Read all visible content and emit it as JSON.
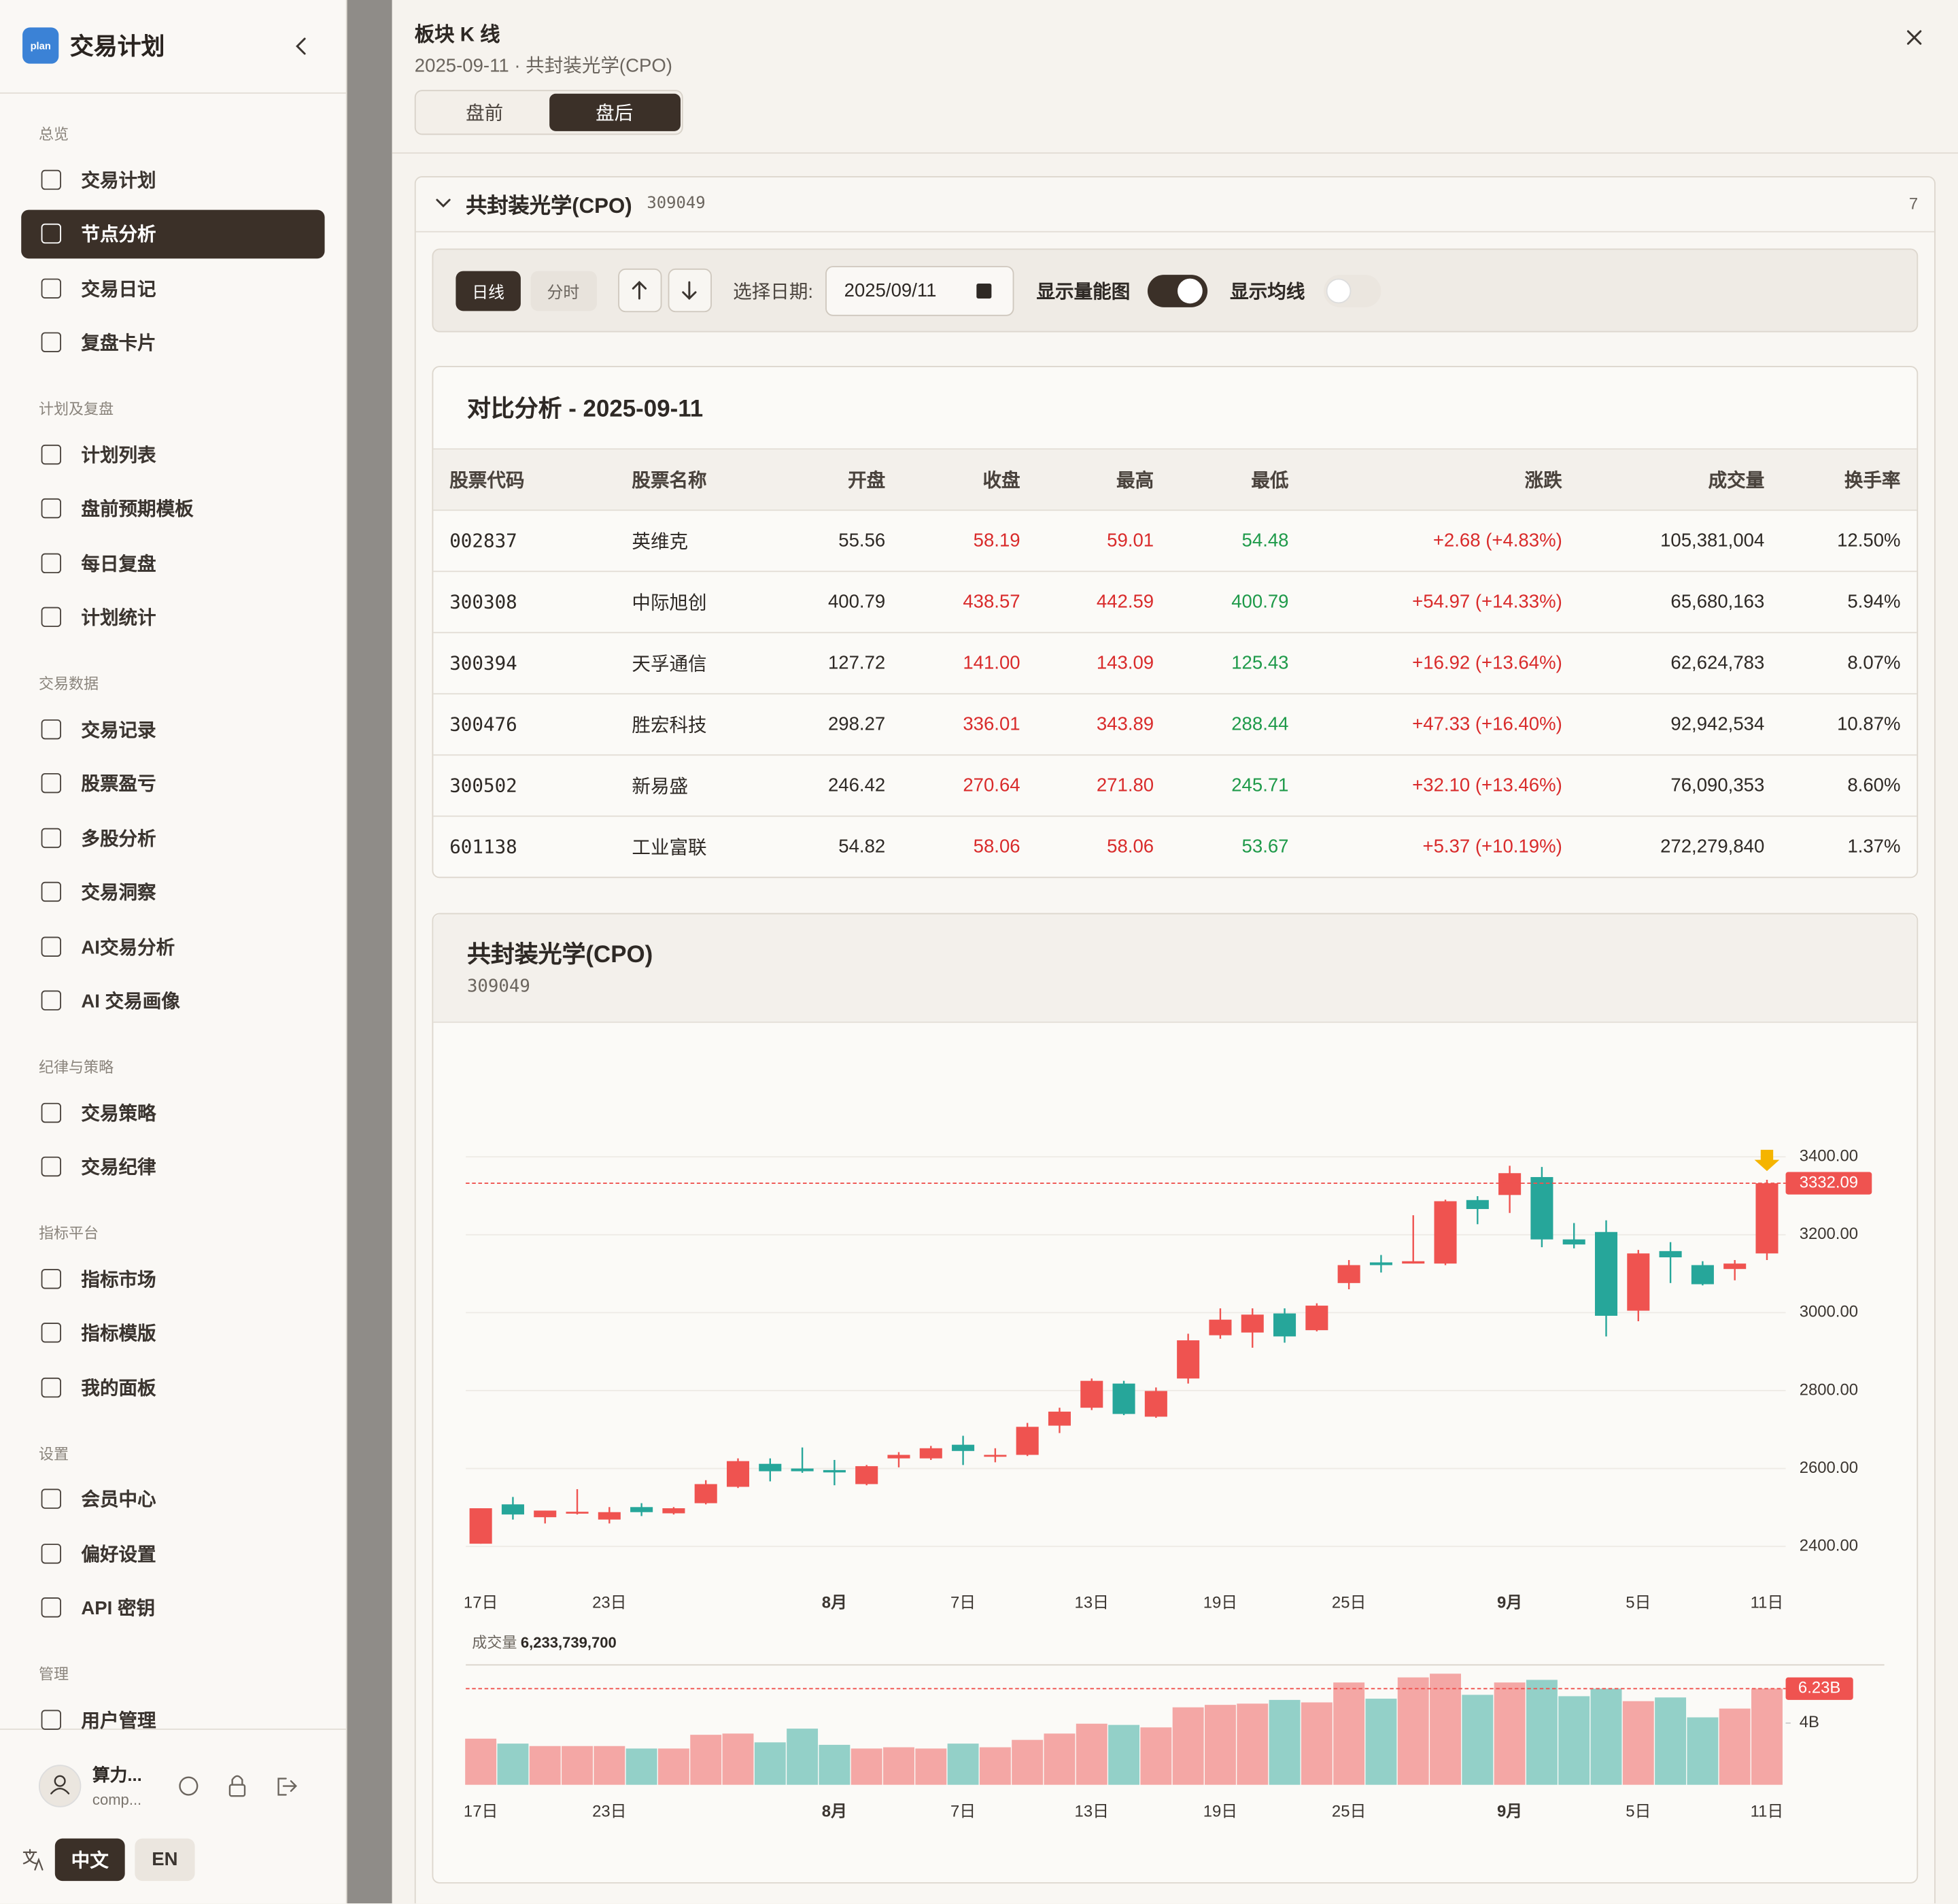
{
  "sidebar": {
    "logo": "plan",
    "app_title": "交易计划",
    "sections": [
      {
        "title": "总览",
        "items": [
          "交易计划",
          "节点分析",
          "交易日记",
          "复盘卡片"
        ]
      },
      {
        "title": "计划及复盘",
        "items": [
          "计划列表",
          "盘前预期模板",
          "每日复盘",
          "计划统计"
        ]
      },
      {
        "title": "交易数据",
        "items": [
          "交易记录",
          "股票盈亏",
          "多股分析",
          "交易洞察",
          "AI交易分析",
          "AI 交易画像"
        ]
      },
      {
        "title": "纪律与策略",
        "items": [
          "交易策略",
          "交易纪律"
        ]
      },
      {
        "title": "指标平台",
        "items": [
          "指标市场",
          "指标模版",
          "我的面板"
        ]
      },
      {
        "title": "设置",
        "items": [
          "会员中心",
          "偏好设置",
          "API 密钥"
        ]
      },
      {
        "title": "管理",
        "items": [
          "用户管理"
        ]
      }
    ],
    "user": {
      "name": "算力...",
      "email": "comp..."
    },
    "languages": [
      "中文",
      "EN"
    ]
  },
  "panel": {
    "title": "板块 K 线",
    "subtitle": "2025-09-11 · 共封装光学(CPO)",
    "tabs": [
      "盘前",
      "盘后"
    ],
    "section": {
      "title": "共封装光学(CPO)",
      "code": "309049",
      "count": "7"
    },
    "toolbar": {
      "period_tabs": [
        "日线",
        "分时"
      ],
      "date_label": "选择日期:",
      "date_value": "2025/09/11",
      "volume_toggle": "显示量能图",
      "ma_toggle": "显示均线"
    },
    "compare": {
      "title": "对比分析 - 2025-09-11",
      "columns": [
        "股票代码",
        "股票名称",
        "开盘",
        "收盘",
        "最高",
        "最低",
        "涨跌",
        "成交量",
        "换手率"
      ],
      "rows": [
        [
          "002837",
          "英维克",
          "55.56",
          "58.19",
          "59.01",
          "54.48",
          "+2.68 (+4.83%)",
          "105,381,004",
          "12.50%"
        ],
        [
          "300308",
          "中际旭创",
          "400.79",
          "438.57",
          "442.59",
          "400.79",
          "+54.97 (+14.33%)",
          "65,680,163",
          "5.94%"
        ],
        [
          "300394",
          "天孚通信",
          "127.72",
          "141.00",
          "143.09",
          "125.43",
          "+16.92 (+13.64%)",
          "62,624,783",
          "8.07%"
        ],
        [
          "300476",
          "胜宏科技",
          "298.27",
          "336.01",
          "343.89",
          "288.44",
          "+47.33 (+16.40%)",
          "92,942,534",
          "10.87%"
        ],
        [
          "300502",
          "新易盛",
          "246.42",
          "270.64",
          "271.80",
          "245.71",
          "+32.10 (+13.46%)",
          "76,090,353",
          "8.60%"
        ],
        [
          "601138",
          "工业富联",
          "54.82",
          "58.06",
          "58.06",
          "53.67",
          "+5.37 (+10.19%)",
          "272,279,840",
          "1.37%"
        ]
      ]
    }
  },
  "chart_data": [
    {
      "type": "candlestick",
      "title": "共封装光学(CPO)",
      "subtitle": "309049",
      "categories": [
        "17日",
        null,
        null,
        null,
        "23日",
        null,
        null,
        null,
        null,
        null,
        null,
        "8月",
        null,
        null,
        null,
        "7日",
        null,
        null,
        null,
        "13日",
        null,
        null,
        null,
        "19日",
        null,
        null,
        null,
        "25日",
        null,
        null,
        null,
        null,
        "9月",
        null,
        null,
        null,
        "5日",
        null,
        null,
        null,
        "11日"
      ],
      "open": [
        2407,
        2508,
        2475,
        2488,
        2469,
        2501,
        2485,
        2511,
        2553,
        2612,
        2600,
        2596,
        2560,
        2626,
        2626,
        2661,
        2632,
        2635,
        2710,
        2756,
        2818,
        2733,
        2831,
        2942,
        2949,
        2998,
        2955,
        3076,
        3129,
        3126,
        3126,
        3289,
        3302,
        3348,
        3188,
        3207,
        3005,
        3158,
        3122,
        3112,
        3152
      ],
      "high": [
        2498,
        2527,
        2492,
        2547,
        2501,
        2511,
        2501,
        2570,
        2626,
        2626,
        2654,
        2622,
        2609,
        2642,
        2658,
        2684,
        2652,
        2717,
        2756,
        2831,
        2825,
        2808,
        2946,
        3011,
        3011,
        3011,
        3024,
        3135,
        3148,
        3250,
        3290,
        3299,
        3377,
        3374,
        3230,
        3237,
        3161,
        3181,
        3132,
        3135,
        3341
      ],
      "low": [
        2407,
        2469,
        2459,
        2482,
        2459,
        2478,
        2482,
        2508,
        2550,
        2567,
        2589,
        2557,
        2557,
        2603,
        2622,
        2609,
        2616,
        2632,
        2691,
        2750,
        2737,
        2730,
        2818,
        2933,
        2910,
        2923,
        2952,
        3060,
        3103,
        3126,
        3122,
        3227,
        3256,
        3168,
        3165,
        2939,
        2978,
        3076,
        3070,
        3083,
        3135
      ],
      "close": [
        2498,
        2482,
        2492,
        2489,
        2488,
        2488,
        2498,
        2560,
        2619,
        2593,
        2593,
        2590,
        2606,
        2635,
        2652,
        2645,
        2635,
        2707,
        2746,
        2825,
        2740,
        2799,
        2929,
        2982,
        2995,
        2939,
        3018,
        3122,
        3122,
        3132,
        3286,
        3266,
        3358,
        3188,
        3175,
        2992,
        3152,
        3142,
        3073,
        3126,
        3332.09
      ],
      "ylim": [
        2330,
        3500
      ],
      "yticks": [
        {
          "value": 2400,
          "label": "2400.00"
        },
        {
          "value": 2600,
          "label": "2600.00"
        },
        {
          "value": 2800,
          "label": "2800.00"
        },
        {
          "value": 3000,
          "label": "3000.00"
        },
        {
          "value": 3200,
          "label": "3200.00"
        },
        {
          "value": 3400,
          "label": "3400.00"
        }
      ],
      "grid": true,
      "up_color": "#ef5350",
      "down_color": "#26a69a"
    },
    {
      "type": "bar",
      "title": "成交量",
      "title_value": "6,233,739,700",
      "categories": [
        "17日",
        null,
        null,
        null,
        "23日",
        null,
        null,
        null,
        null,
        null,
        null,
        "8月",
        null,
        null,
        null,
        "7日",
        null,
        null,
        null,
        "13日",
        null,
        null,
        null,
        "19日",
        null,
        null,
        null,
        "25日",
        null,
        null,
        null,
        null,
        "9月",
        null,
        null,
        null,
        "5日",
        null,
        null,
        null,
        "11日"
      ],
      "values": [
        2.99,
        2.67,
        2.51,
        2.51,
        2.51,
        2.35,
        2.35,
        3.24,
        3.32,
        2.75,
        3.64,
        2.59,
        2.35,
        2.43,
        2.35,
        2.67,
        2.43,
        2.91,
        3.32,
        3.96,
        3.88,
        3.72,
        5.02,
        5.18,
        5.26,
        5.5,
        5.34,
        6.63,
        5.58,
        6.96,
        7.2,
        5.83,
        6.63,
        6.8,
        5.74,
        6.23,
        5.42,
        5.66,
        4.37,
        4.94,
        6.23
      ],
      "value_labels": [
        null,
        null,
        null,
        null,
        null,
        null,
        null,
        null,
        null,
        null,
        null,
        null,
        null,
        null,
        null,
        null,
        null,
        null,
        null,
        null,
        null,
        null,
        null,
        null,
        null,
        null,
        null,
        null,
        null,
        null,
        null,
        null,
        null,
        null,
        null,
        null,
        null,
        null,
        null,
        null,
        "6.23B"
      ],
      "ylim": [
        0,
        7.77
      ],
      "yticks": [
        {
          "value": 4,
          "label": "4B"
        }
      ],
      "up_color": "#f4a7a5",
      "down_color": "#93d0c8"
    }
  ]
}
